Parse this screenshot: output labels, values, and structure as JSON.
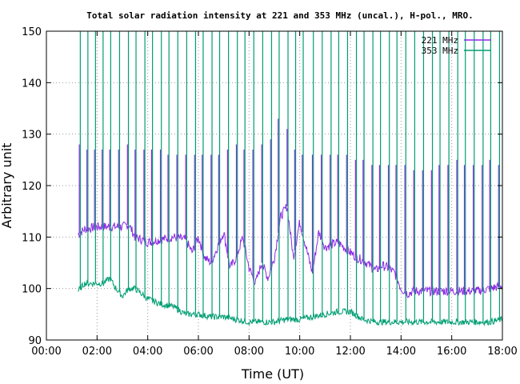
{
  "chart_data": {
    "type": "line",
    "title": "Total solar radiation intensity at 221 and 353 MHz (uncal.), H-pol., MRO.",
    "xlabel": "Time (UT)",
    "ylabel": "Arbitrary unit",
    "xlim": [
      0,
      18
    ],
    "ylim": [
      90,
      150
    ],
    "x_tick_labels": [
      "00:00",
      "02:00",
      "04:00",
      "06:00",
      "08:00",
      "10:00",
      "12:00",
      "14:00",
      "16:00",
      "18:00"
    ],
    "y_tick_labels": [
      "90",
      "100",
      "110",
      "120",
      "130",
      "140",
      "150"
    ],
    "grid": "dotted",
    "legend_position": "top-right",
    "series": [
      {
        "name": "221 MHz",
        "color": "#8b2be2",
        "x": [
          1.25,
          1.5,
          2.0,
          2.5,
          3.0,
          3.25,
          3.5,
          4.0,
          4.5,
          5.0,
          5.5,
          5.75,
          6.0,
          6.25,
          6.5,
          6.75,
          7.0,
          7.25,
          7.5,
          7.75,
          8.0,
          8.25,
          8.5,
          8.75,
          9.0,
          9.25,
          9.5,
          9.75,
          10.0,
          10.25,
          10.5,
          10.75,
          11.0,
          11.5,
          12.0,
          12.25,
          12.5,
          12.75,
          13.0,
          13.25,
          13.5,
          13.75,
          14.0,
          14.25,
          14.5,
          15.0,
          15.5,
          16.0,
          16.5,
          17.0,
          17.5,
          18.0
        ],
        "y": [
          110.5,
          111.5,
          112,
          112,
          112,
          112.5,
          110,
          109,
          109.5,
          110,
          109.5,
          107,
          110,
          106,
          105,
          108,
          111,
          104,
          106,
          110,
          104,
          101,
          105,
          102,
          106,
          114,
          116,
          106,
          113,
          108,
          103,
          111,
          108,
          109,
          107,
          106,
          105.5,
          104.5,
          103.5,
          104.5,
          104,
          103,
          100,
          99,
          99.5,
          99.5,
          99.5,
          99.5,
          99.5,
          99.5,
          100,
          100.5
        ]
      },
      {
        "name": "353 MHz",
        "color": "#009e73",
        "x": [
          1.25,
          1.5,
          2.0,
          2.25,
          2.5,
          2.75,
          3.0,
          3.25,
          3.5,
          4.0,
          4.5,
          5.0,
          5.5,
          6.0,
          6.5,
          7.0,
          7.5,
          8.0,
          8.5,
          9.0,
          9.5,
          10.0,
          10.5,
          11.0,
          11.5,
          12.0,
          12.5,
          13.0,
          13.5,
          14.0,
          14.5,
          15.0,
          15.5,
          16.0,
          16.5,
          17.0,
          17.5,
          18.0
        ],
        "y": [
          99.5,
          101,
          101,
          101,
          102,
          100,
          98.5,
          100,
          100,
          98,
          97,
          96.5,
          95,
          95,
          94.5,
          94.5,
          94,
          93.5,
          93.5,
          93.5,
          94,
          94,
          94.5,
          95,
          95.5,
          95.5,
          94,
          93.5,
          93.5,
          93.5,
          93.5,
          93.5,
          93.5,
          93.5,
          93.5,
          93.5,
          93.5,
          94
        ]
      }
    ],
    "spikes": {
      "221 MHz": {
        "x": [
          1.3,
          1.6,
          1.9,
          2.2,
          2.5,
          2.85,
          3.2,
          3.5,
          3.85,
          4.15,
          4.5,
          4.8,
          5.15,
          5.5,
          5.85,
          6.15,
          6.5,
          6.8,
          7.15,
          7.5,
          7.8,
          8.15,
          8.5,
          8.85,
          9.15,
          9.5,
          9.8,
          10.1,
          10.5,
          10.85,
          11.2,
          11.5,
          11.85,
          12.2,
          12.5,
          12.85,
          13.15,
          13.5,
          13.8,
          14.15,
          14.5,
          14.85,
          15.2,
          15.5,
          15.85,
          16.2,
          16.5,
          16.85,
          17.2,
          17.5,
          17.85
        ],
        "y": [
          128,
          127,
          127,
          127,
          127,
          127,
          128,
          127,
          127,
          127,
          127,
          126,
          126,
          126,
          126,
          126,
          126,
          126,
          127,
          128,
          127,
          127,
          128,
          129,
          133,
          131,
          127,
          126,
          126,
          126,
          126,
          126,
          126,
          125,
          125,
          124,
          124,
          124,
          124,
          124,
          123,
          123,
          123,
          124,
          124,
          125,
          124,
          124,
          124,
          125,
          124
        ]
      },
      "353 MHz": {
        "x": [
          1.3,
          1.6,
          1.9,
          2.2,
          2.5,
          2.85,
          3.2,
          3.5,
          3.85,
          4.15,
          4.5,
          4.8,
          5.15,
          5.5,
          5.85,
          6.15,
          6.5,
          6.8,
          7.15,
          7.5,
          7.8,
          8.15,
          8.5,
          8.85,
          9.15,
          9.5,
          9.8,
          10.1,
          10.5,
          10.85,
          11.2,
          11.5,
          11.85,
          12.2,
          12.5,
          12.85,
          13.15,
          13.5,
          13.8,
          14.15,
          14.5,
          14.85,
          15.2,
          15.5,
          15.85,
          16.2,
          16.5,
          16.85,
          17.2,
          17.5,
          17.85
        ],
        "y": [
          150,
          150,
          150,
          150,
          150,
          150,
          150,
          150,
          150,
          150,
          150,
          150,
          150,
          150,
          150,
          150,
          150,
          150,
          150,
          150,
          150,
          150,
          150,
          150,
          150,
          150,
          150,
          150,
          150,
          150,
          150,
          150,
          150,
          150,
          150,
          150,
          150,
          150,
          150,
          150,
          150,
          150,
          150,
          150,
          150,
          150,
          150,
          150,
          150,
          150,
          150
        ]
      }
    }
  }
}
